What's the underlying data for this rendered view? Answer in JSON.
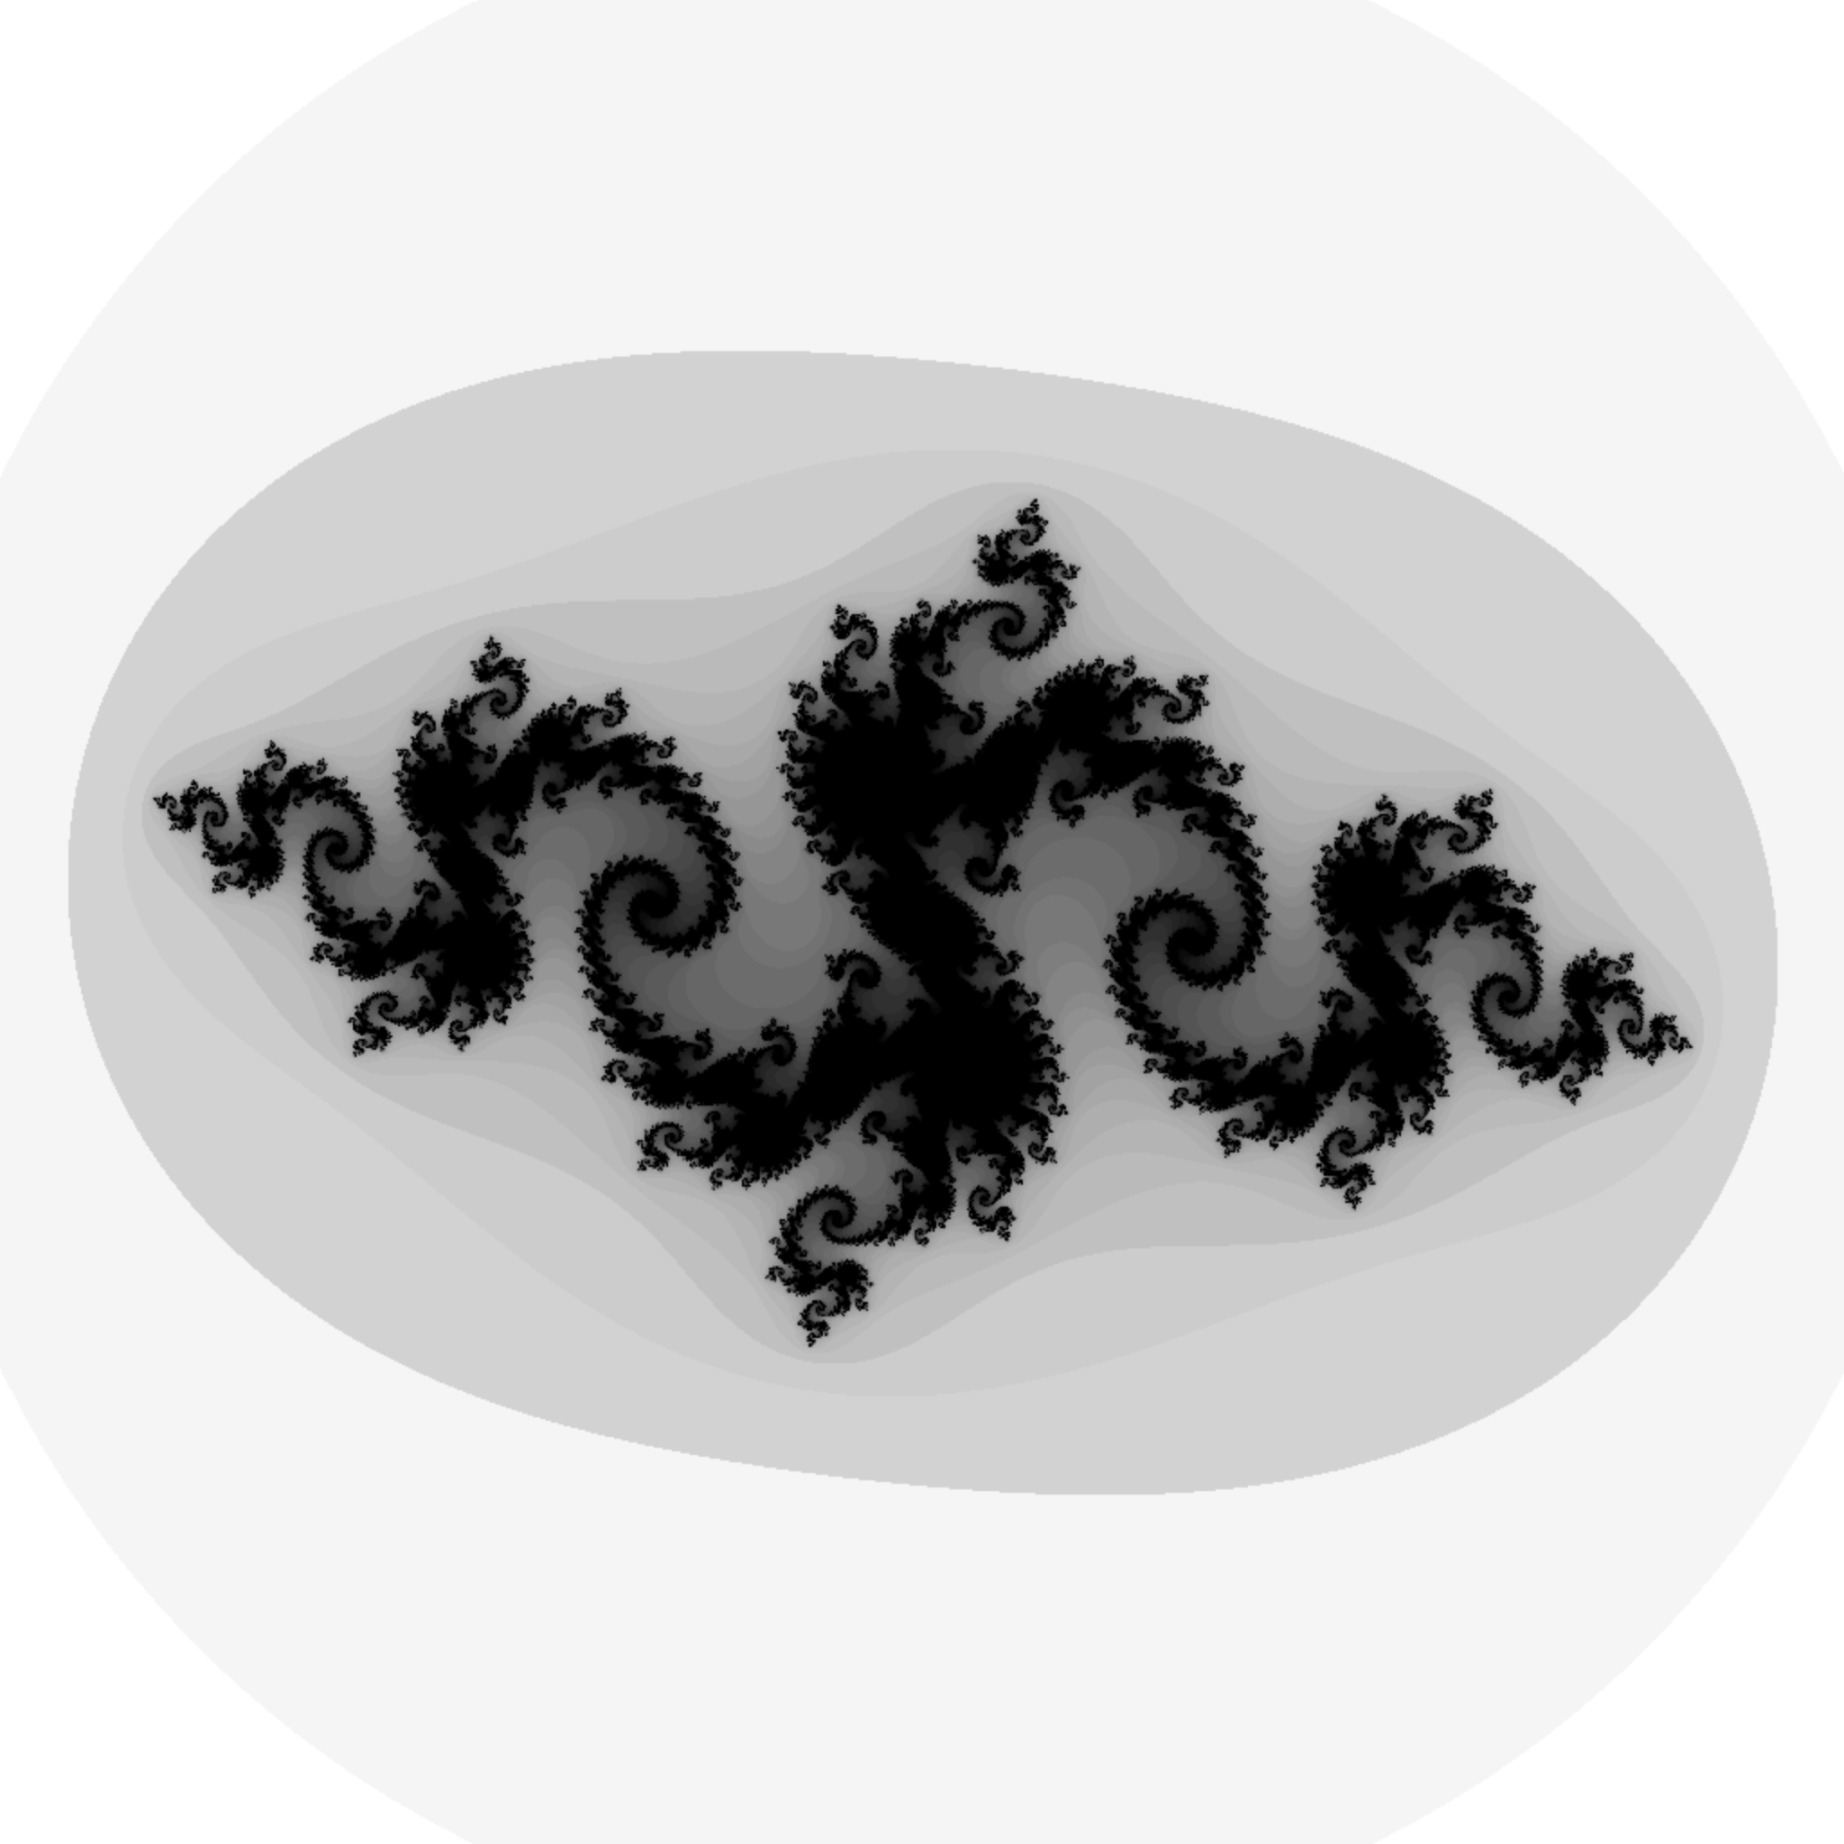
{
  "image": {
    "subject": "julia-set-fractal",
    "palette": {
      "background": "#ffffff",
      "outer_band": "#f5f5f5",
      "mid_band": "#ebebeb",
      "inner_band": "#a4a4a4",
      "core": "#000000"
    },
    "fractal": {
      "c_real": -0.79,
      "c_imag": 0.15,
      "center_real": 0.0,
      "center_imag": 0.0,
      "span": 3.6,
      "rotation_deg": -12,
      "max_iterations": 220
    }
  }
}
